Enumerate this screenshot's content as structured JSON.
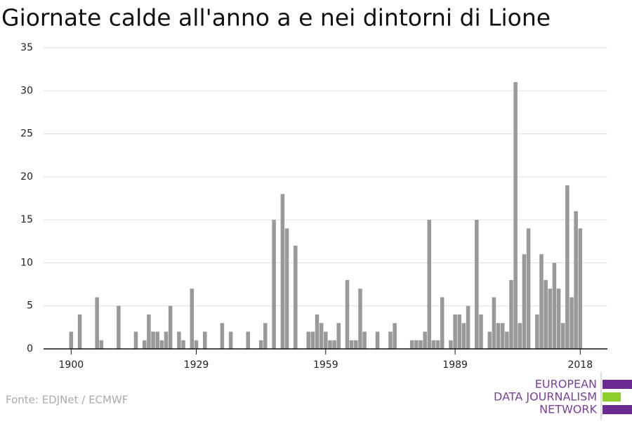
{
  "chart_data": {
    "type": "bar",
    "title": "Giornate calde all'anno a e nei dintorni di Lione",
    "source": "Fonte: EDJNet / ECMWF",
    "logo": [
      "EUROPEAN",
      "DATA JOURNALISM",
      "NETWORK"
    ],
    "color": "#999999",
    "x": [
      1900,
      1902,
      1906,
      1907,
      1911,
      1915,
      1917,
      1918,
      1919,
      1920,
      1921,
      1922,
      1923,
      1925,
      1926,
      1928,
      1929,
      1931,
      1935,
      1937,
      1941,
      1944,
      1945,
      1947,
      1949,
      1950,
      1952,
      1955,
      1956,
      1957,
      1958,
      1959,
      1960,
      1961,
      1962,
      1964,
      1965,
      1966,
      1967,
      1968,
      1971,
      1974,
      1975,
      1979,
      1980,
      1981,
      1982,
      1983,
      1984,
      1985,
      1986,
      1988,
      1989,
      1990,
      1991,
      1992,
      1994,
      1995,
      1997,
      1998,
      1999,
      2000,
      2001,
      2002,
      2003,
      2004,
      2005,
      2006,
      2008,
      2009,
      2010,
      2011,
      2012,
      2013,
      2014,
      2015,
      2016,
      2017,
      2018
    ],
    "values": [
      2,
      4,
      6,
      1,
      5,
      2,
      1,
      4,
      2,
      2,
      1,
      2,
      5,
      2,
      1,
      7,
      1,
      2,
      3,
      2,
      2,
      1,
      3,
      15,
      18,
      14,
      12,
      2,
      2,
      4,
      3,
      2,
      1,
      1,
      3,
      8,
      1,
      1,
      7,
      2,
      2,
      2,
      3,
      1,
      1,
      1,
      2,
      15,
      1,
      1,
      6,
      1,
      4,
      4,
      3,
      5,
      15,
      4,
      2,
      6,
      3,
      3,
      2,
      8,
      31,
      3,
      11,
      14,
      4,
      11,
      8,
      7,
      10,
      7,
      3,
      19,
      6,
      16,
      14
    ],
    "xlim": [
      1893.6,
      2024.3
    ],
    "xticks": [
      1900,
      1929,
      1959,
      1989,
      2018
    ],
    "ylim": [
      0,
      35
    ],
    "yticks": [
      0,
      5,
      10,
      15,
      20,
      25,
      30,
      35
    ],
    "grid": true
  }
}
